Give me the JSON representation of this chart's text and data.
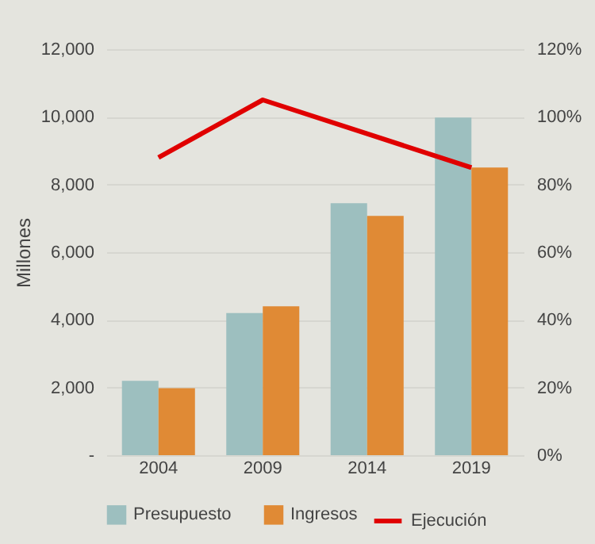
{
  "chart_data": {
    "type": "bar",
    "ylabel": "Millones",
    "categories": [
      "2004",
      "2009",
      "2014",
      "2019"
    ],
    "series": [
      {
        "name": "Presupuesto",
        "color": "#9dbfbf",
        "values": [
          2200,
          4200,
          7450,
          9980
        ]
      },
      {
        "name": "Ingresos",
        "color": "#e08a35",
        "values": [
          1980,
          4400,
          7070,
          8500
        ]
      },
      {
        "name": "Ejecución",
        "color": "#e00000",
        "type": "line",
        "axis": "y2",
        "values": [
          88,
          105,
          95,
          85
        ]
      }
    ],
    "ylim": [
      0,
      12000
    ],
    "yticks": [
      {
        "value": 0,
        "label": "-"
      },
      {
        "value": 2000,
        "label": "2,000"
      },
      {
        "value": 4000,
        "label": "4,000"
      },
      {
        "value": 6000,
        "label": "6,000"
      },
      {
        "value": 8000,
        "label": "8,000"
      },
      {
        "value": 10000,
        "label": "10,000"
      },
      {
        "value": 12000,
        "label": "12,000"
      }
    ],
    "y2lim": [
      0,
      120
    ],
    "y2ticks": [
      {
        "value": 0,
        "label": "0%"
      },
      {
        "value": 20,
        "label": "20%"
      },
      {
        "value": 40,
        "label": "40%"
      },
      {
        "value": 60,
        "label": "60%"
      },
      {
        "value": 80,
        "label": "80%"
      },
      {
        "value": 100,
        "label": "100%"
      },
      {
        "value": 120,
        "label": "120%"
      }
    ],
    "grid": "y",
    "legend": "bottom"
  }
}
